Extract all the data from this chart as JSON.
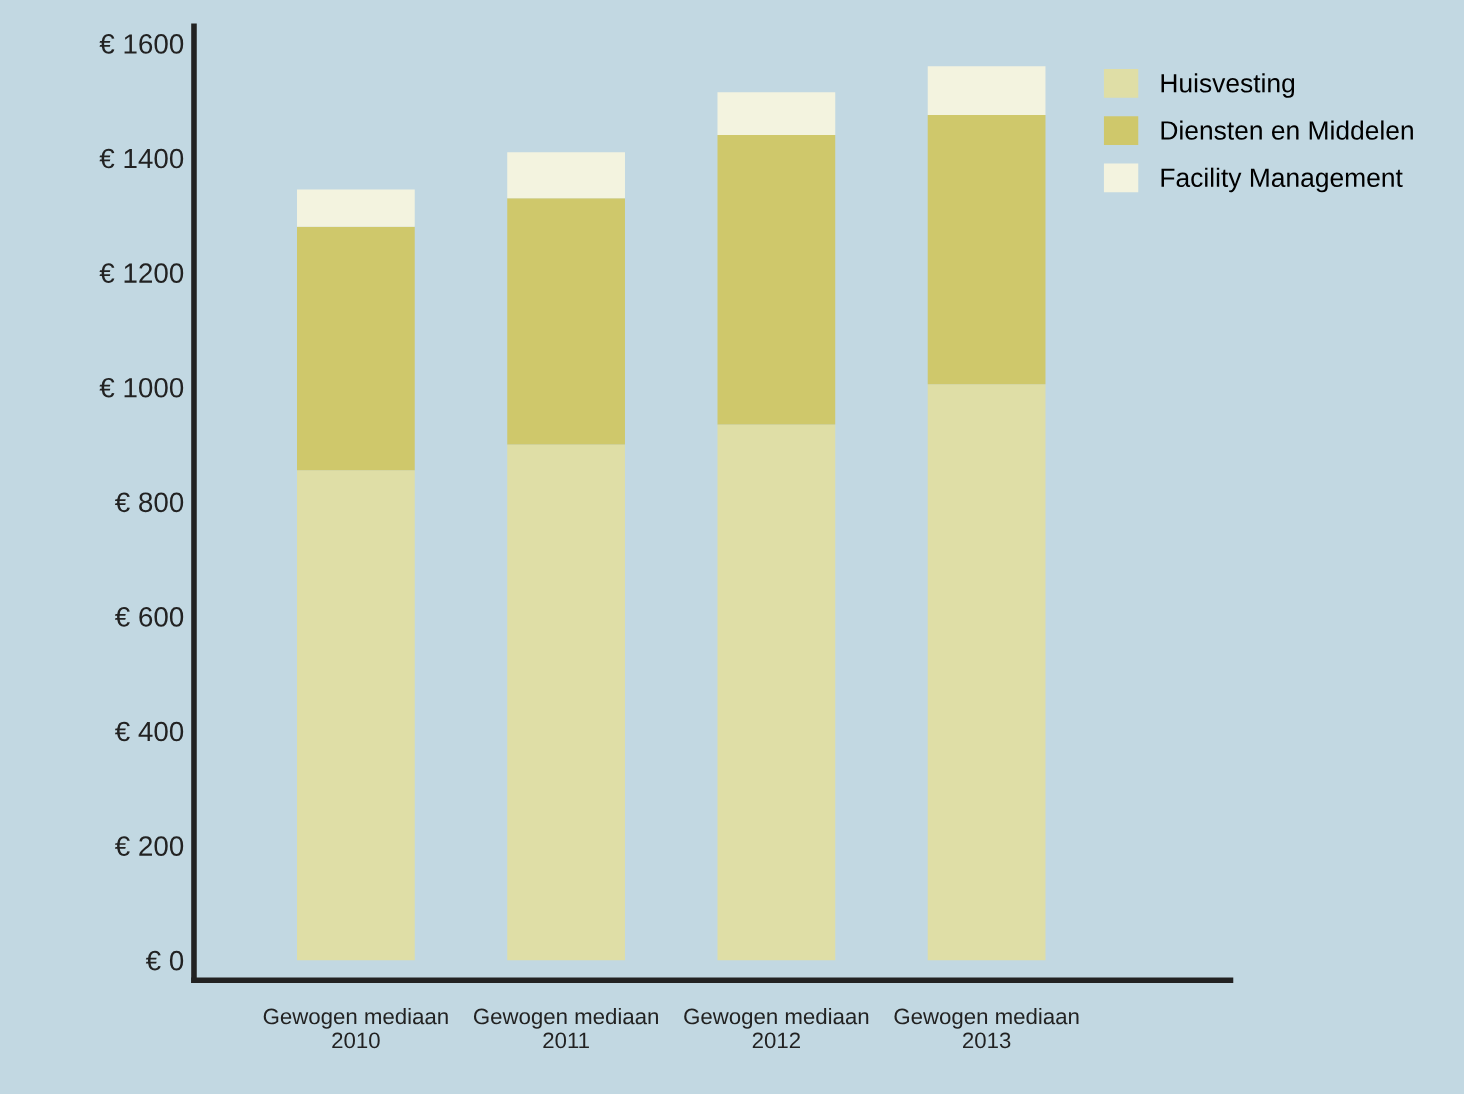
{
  "chart_data": {
    "type": "bar",
    "stacked": true,
    "categories": [
      "Gewogen mediaan\n2010",
      "Gewogen mediaan\n2011",
      "Gewogen mediaan\n2012",
      "Gewogen mediaan\n2013"
    ],
    "series": [
      {
        "name": "Huisvesting",
        "color": "#dfdea6",
        "values": [
          855,
          900,
          935,
          1005
        ]
      },
      {
        "name": "Diensten en Middelen",
        "color": "#cfc86b",
        "values": [
          425,
          430,
          505,
          470
        ]
      },
      {
        "name": "Facility Management",
        "color": "#f3f3df",
        "values": [
          65,
          80,
          75,
          85
        ]
      }
    ],
    "ylim": [
      -35,
      1630
    ],
    "yticks": [
      {
        "value": 0,
        "label": "€ 0"
      },
      {
        "value": 200,
        "label": "€ 200"
      },
      {
        "value": 400,
        "label": "€ 400"
      },
      {
        "value": 600,
        "label": "€ 600"
      },
      {
        "value": 800,
        "label": "€ 800"
      },
      {
        "value": 1000,
        "label": "€ 1000"
      },
      {
        "value": 1200,
        "label": "€ 1200"
      },
      {
        "value": 1400,
        "label": "€ 1400"
      },
      {
        "value": 1600,
        "label": "€ 1600"
      }
    ],
    "grid": false,
    "legend": "top right"
  }
}
